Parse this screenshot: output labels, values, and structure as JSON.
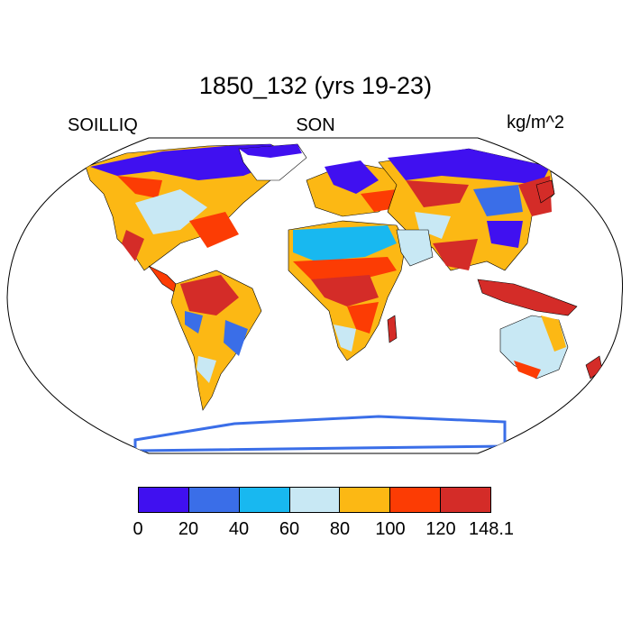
{
  "title": "1850_132 (yrs 19-23)",
  "left_label": "SOILLIQ",
  "center_label": "SON",
  "right_label": "kg/m^2",
  "colorbar": {
    "colors": [
      "#4010f0",
      "#3a6ee8",
      "#18b8f0",
      "#c8e8f4",
      "#fcb814",
      "#fc3c04",
      "#d42c28"
    ],
    "ticks": [
      "0",
      "20",
      "40",
      "60",
      "80",
      "100",
      "120",
      "148.1"
    ]
  }
}
